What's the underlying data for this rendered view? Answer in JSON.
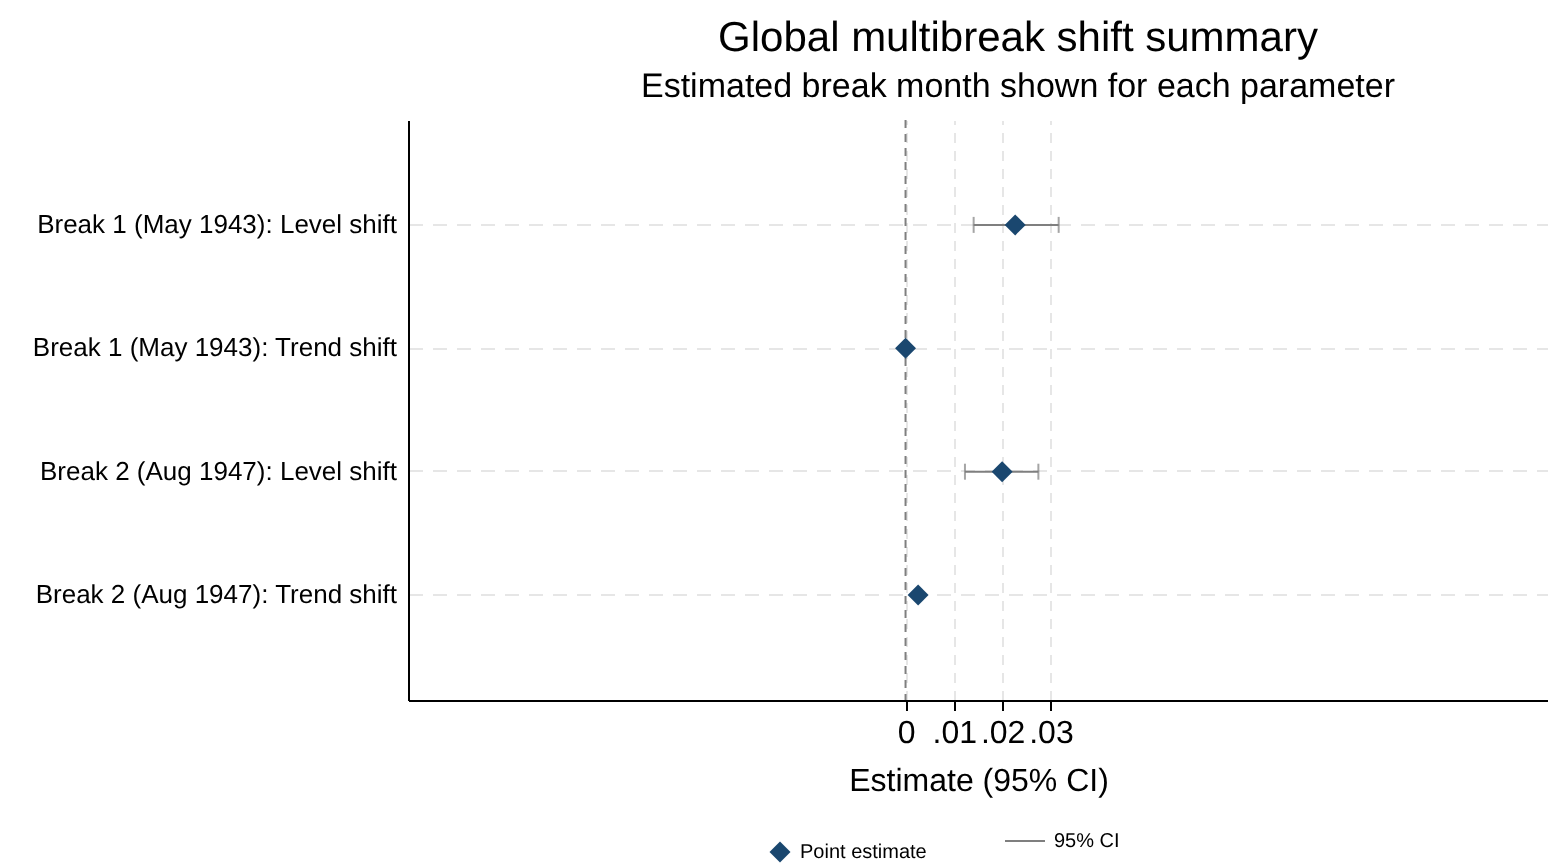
{
  "chart_data": {
    "type": "scatter",
    "title": "Global multibreak shift summary",
    "subtitle": "Estimated break month shown for each parameter",
    "xlabel": "Estimate (95% CI)",
    "orientation": "horizontal",
    "categories": [
      "Break 1 (May 1943): Level shift",
      "Break 1 (May 1943): Trend shift",
      "Break 2 (Aug 1947): Level shift",
      "Break 2 (Aug 1947): Trend shift"
    ],
    "series": [
      {
        "name": "Point estimate",
        "color": "#1a476f",
        "values": [
          0.0227,
          0,
          0.02,
          0.0026
        ],
        "errors": [
          [
            0.0141,
            0.0317
          ],
          null,
          [
            0.0123,
            0.0275
          ],
          null
        ]
      }
    ],
    "annotations": [
      "95% CI"
    ],
    "xlim": [
      -0.103,
      0.133
    ],
    "xticks": [
      0,
      {
        "value": 0.01,
        "label": ".01"
      },
      {
        "value": 0.02,
        "label": ".02"
      },
      {
        "value": 0.03,
        "label": ".03"
      }
    ],
    "ref_lines": [
      {
        "axis": "x",
        "value": 0,
        "color": "#7f7f7f",
        "line_style": "dashed"
      }
    ],
    "grid": true,
    "legend": "bottom",
    "marker": "diamond"
  }
}
